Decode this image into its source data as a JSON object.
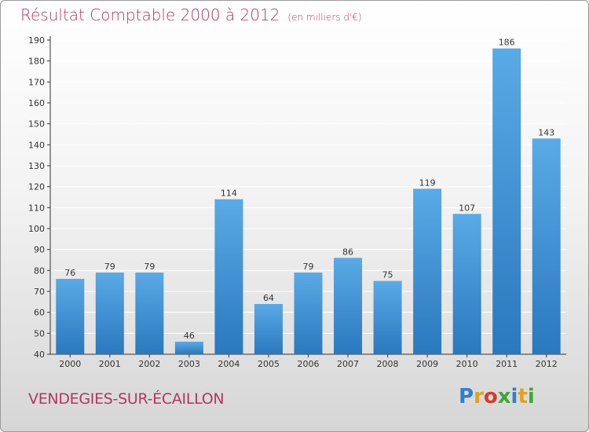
{
  "header": {
    "title": "Résultat Comptable 2000 à 2012",
    "subtitle": "(en milliers d'€)"
  },
  "footer": {
    "commune": "VENDEGIES-SUR-ÉCAILLON",
    "logo_letters": [
      "P",
      "r",
      "o",
      "x",
      "i",
      "t",
      "i"
    ],
    "logo_colors": [
      "#2f7fd0",
      "#e0a21c",
      "#d93b2b",
      "#3aaa35",
      "#2f7fd0",
      "#e0a21c",
      "#3aaa35"
    ]
  },
  "colors": {
    "bar_top": "#5aaae6",
    "bar_bottom": "#2a78be",
    "grid": "#ffffff",
    "axis": "#333333"
  },
  "chart_data": {
    "type": "bar",
    "categories": [
      "2000",
      "2001",
      "2002",
      "2003",
      "2004",
      "2005",
      "2006",
      "2007",
      "2008",
      "2009",
      "2010",
      "2011",
      "2012"
    ],
    "values": [
      76,
      79,
      79,
      46,
      114,
      64,
      79,
      86,
      75,
      119,
      107,
      186,
      143
    ],
    "title": "Résultat Comptable 2000 à 2012",
    "xlabel": "",
    "ylabel": "",
    "ylim": [
      40,
      190
    ],
    "yticks": [
      40,
      50,
      60,
      70,
      80,
      90,
      100,
      110,
      120,
      130,
      140,
      150,
      160,
      170,
      180,
      190
    ],
    "grid": true
  }
}
